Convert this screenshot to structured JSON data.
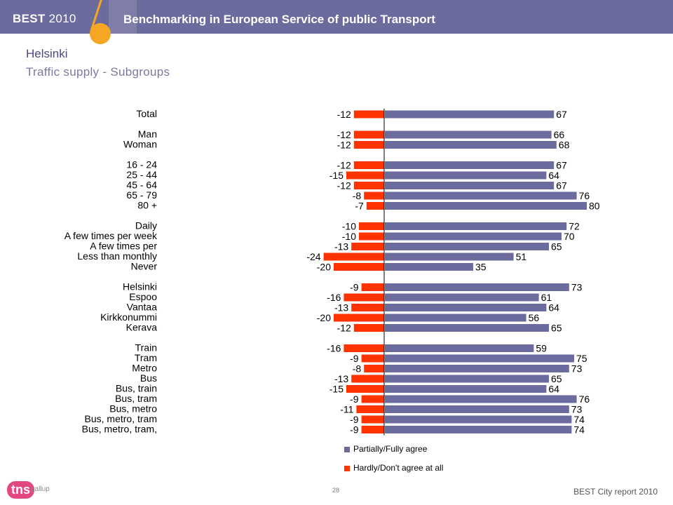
{
  "header": {
    "brand": "BEST",
    "brand_year": "2010",
    "headline": "Benchmarking in European Service of public Transport"
  },
  "page": {
    "title": "Helsinki",
    "subtitle": "Traffic supply - Subgroups",
    "page_number": "28",
    "footer_note": "BEST City report 2010"
  },
  "logo": {
    "tns": "tns",
    "gallup": "gallup"
  },
  "colors": {
    "agree": "#6b6b9d",
    "disagree": "#ff3300",
    "header": "#6b6b9d",
    "accent": "#f5a623"
  },
  "chart_data": {
    "type": "bar",
    "orientation": "horizontal-diverging",
    "categories": [
      "Total",
      "Man",
      "Woman",
      "16 - 24",
      "25 - 44",
      "45 - 64",
      "65 - 79",
      "80 +",
      "Daily",
      "A few times per week",
      "A few times per",
      "Less than monthly",
      "Never",
      "Helsinki",
      "Espoo",
      "Vantaa",
      "Kirkkonummi",
      "Kerava",
      "Train",
      "Tram",
      "Metro",
      "Bus",
      "Bus, train",
      "Bus, tram",
      "Bus, metro",
      "Bus, metro, tram",
      "Bus, metro, tram,"
    ],
    "groups": [
      [
        0
      ],
      [
        1,
        2
      ],
      [
        3,
        4,
        5,
        6,
        7
      ],
      [
        8,
        9,
        10,
        11,
        12
      ],
      [
        13,
        14,
        15,
        16,
        17
      ],
      [
        18,
        19,
        20,
        21,
        22,
        23,
        24,
        25,
        26
      ]
    ],
    "series": [
      {
        "name": "Partially/Fully agree",
        "values": [
          67,
          66,
          68,
          67,
          64,
          67,
          76,
          80,
          72,
          70,
          65,
          51,
          35,
          73,
          61,
          64,
          56,
          65,
          59,
          75,
          73,
          65,
          64,
          76,
          73,
          74,
          74
        ]
      },
      {
        "name": "Hardly/Don't agree at all",
        "values": [
          -12,
          -12,
          -12,
          -12,
          -15,
          -12,
          -8,
          -7,
          -10,
          -10,
          -13,
          -24,
          -20,
          -9,
          -16,
          -13,
          -20,
          -12,
          -16,
          -9,
          -8,
          -13,
          -15,
          -9,
          -11,
          -9,
          -9
        ]
      }
    ],
    "legend": "bottom-center"
  }
}
